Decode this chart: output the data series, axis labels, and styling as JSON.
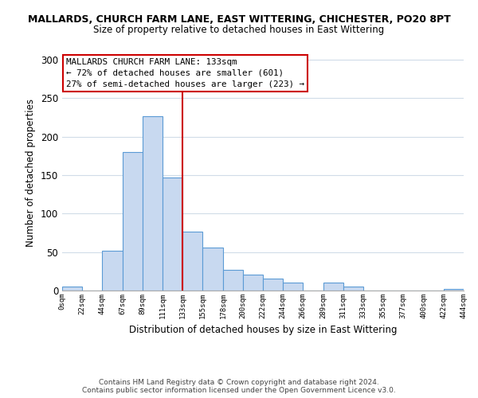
{
  "title": "MALLARDS, CHURCH FARM LANE, EAST WITTERING, CHICHESTER, PO20 8PT",
  "subtitle": "Size of property relative to detached houses in East Wittering",
  "xlabel": "Distribution of detached houses by size in East Wittering",
  "ylabel": "Number of detached properties",
  "bar_edges": [
    0,
    22,
    44,
    67,
    89,
    111,
    133,
    155,
    178,
    200,
    222,
    244,
    266,
    289,
    311,
    333,
    355,
    377,
    400,
    422,
    444
  ],
  "bar_heights": [
    5,
    0,
    52,
    180,
    226,
    147,
    76,
    56,
    27,
    21,
    16,
    10,
    0,
    10,
    5,
    0,
    0,
    0,
    0,
    2
  ],
  "bar_color": "#c8d9f0",
  "bar_edgecolor": "#5b9bd5",
  "vline_x": 133,
  "vline_color": "#cc0000",
  "annotation_box_text": "MALLARDS CHURCH FARM LANE: 133sqm\n← 72% of detached houses are smaller (601)\n27% of semi-detached houses are larger (223) →",
  "ylim": [
    0,
    305
  ],
  "xlim": [
    0,
    444
  ],
  "tick_labels": [
    "0sqm",
    "22sqm",
    "44sqm",
    "67sqm",
    "89sqm",
    "111sqm",
    "133sqm",
    "155sqm",
    "178sqm",
    "200sqm",
    "222sqm",
    "244sqm",
    "266sqm",
    "289sqm",
    "311sqm",
    "333sqm",
    "355sqm",
    "377sqm",
    "400sqm",
    "422sqm",
    "444sqm"
  ],
  "tick_positions": [
    0,
    22,
    44,
    67,
    89,
    111,
    133,
    155,
    178,
    200,
    222,
    244,
    266,
    289,
    311,
    333,
    355,
    377,
    400,
    422,
    444
  ],
  "yticks": [
    0,
    50,
    100,
    150,
    200,
    250,
    300
  ],
  "footer": "Contains HM Land Registry data © Crown copyright and database right 2024.\nContains public sector information licensed under the Open Government Licence v3.0.",
  "background_color": "#ffffff",
  "grid_color": "#d0dce8"
}
